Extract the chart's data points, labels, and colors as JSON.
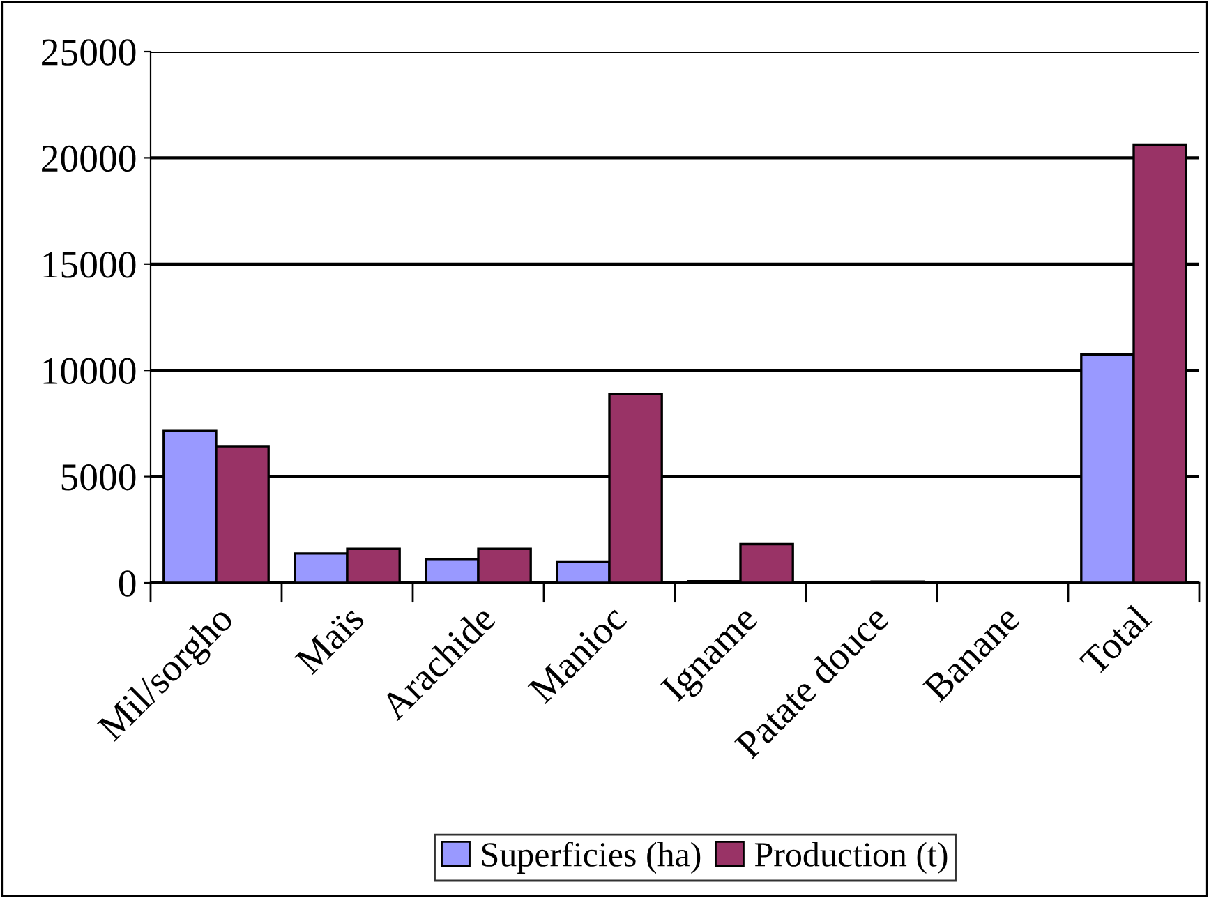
{
  "chart_data": {
    "type": "bar",
    "categories": [
      "Mil/sorgho",
      "Maïs",
      "Arachide",
      "Manioc",
      "Igname",
      "Patate douce",
      "Banane",
      "Total"
    ],
    "series": [
      {
        "name": "Superficies (ha)",
        "color": "#9999ff",
        "values": [
          7150,
          1380,
          1120,
          1000,
          80,
          null,
          null,
          10740
        ]
      },
      {
        "name": "Production (t)",
        "color": "#993366",
        "values": [
          6430,
          1600,
          1600,
          8880,
          1820,
          60,
          null,
          20620
        ]
      }
    ],
    "ylim": [
      0,
      25000
    ],
    "yticks": [
      0,
      5000,
      10000,
      15000,
      20000,
      25000
    ],
    "grid": "y",
    "legend": "bottom"
  }
}
